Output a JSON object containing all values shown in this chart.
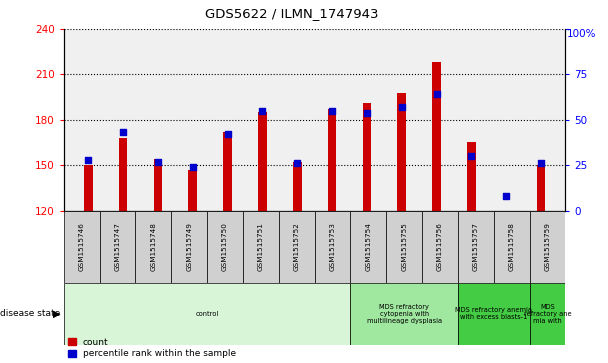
{
  "title": "GDS5622 / ILMN_1747943",
  "samples": [
    "GSM1515746",
    "GSM1515747",
    "GSM1515748",
    "GSM1515749",
    "GSM1515750",
    "GSM1515751",
    "GSM1515752",
    "GSM1515753",
    "GSM1515754",
    "GSM1515755",
    "GSM1515756",
    "GSM1515757",
    "GSM1515758",
    "GSM1515759"
  ],
  "counts": [
    150,
    168,
    154,
    147,
    172,
    185,
    152,
    187,
    191,
    198,
    218,
    165,
    115,
    150
  ],
  "percentiles": [
    28,
    43,
    27,
    24,
    42,
    55,
    26,
    55,
    54,
    57,
    64,
    30,
    8,
    26
  ],
  "ylim_left": [
    120,
    240
  ],
  "ylim_right": [
    0,
    100
  ],
  "yticks_left": [
    120,
    150,
    180,
    210,
    240
  ],
  "yticks_right": [
    0,
    25,
    50,
    75,
    100
  ],
  "bar_color": "#cc0000",
  "dot_color": "#0000cc",
  "plot_bg": "#f0f0f0",
  "disease_groups": [
    {
      "label": "control",
      "start": 0,
      "end": 8,
      "color": "#d8f5d8"
    },
    {
      "label": "MDS refractory\ncytopenia with\nmultilineage dysplasia",
      "start": 8,
      "end": 11,
      "color": "#a0e8a0"
    },
    {
      "label": "MDS refractory anemia\nwith excess blasts-1",
      "start": 11,
      "end": 13,
      "color": "#44cc44"
    },
    {
      "label": "MDS\nrefractory ane\nmia with",
      "start": 13,
      "end": 14,
      "color": "#44cc44"
    }
  ],
  "n_samples": 14
}
